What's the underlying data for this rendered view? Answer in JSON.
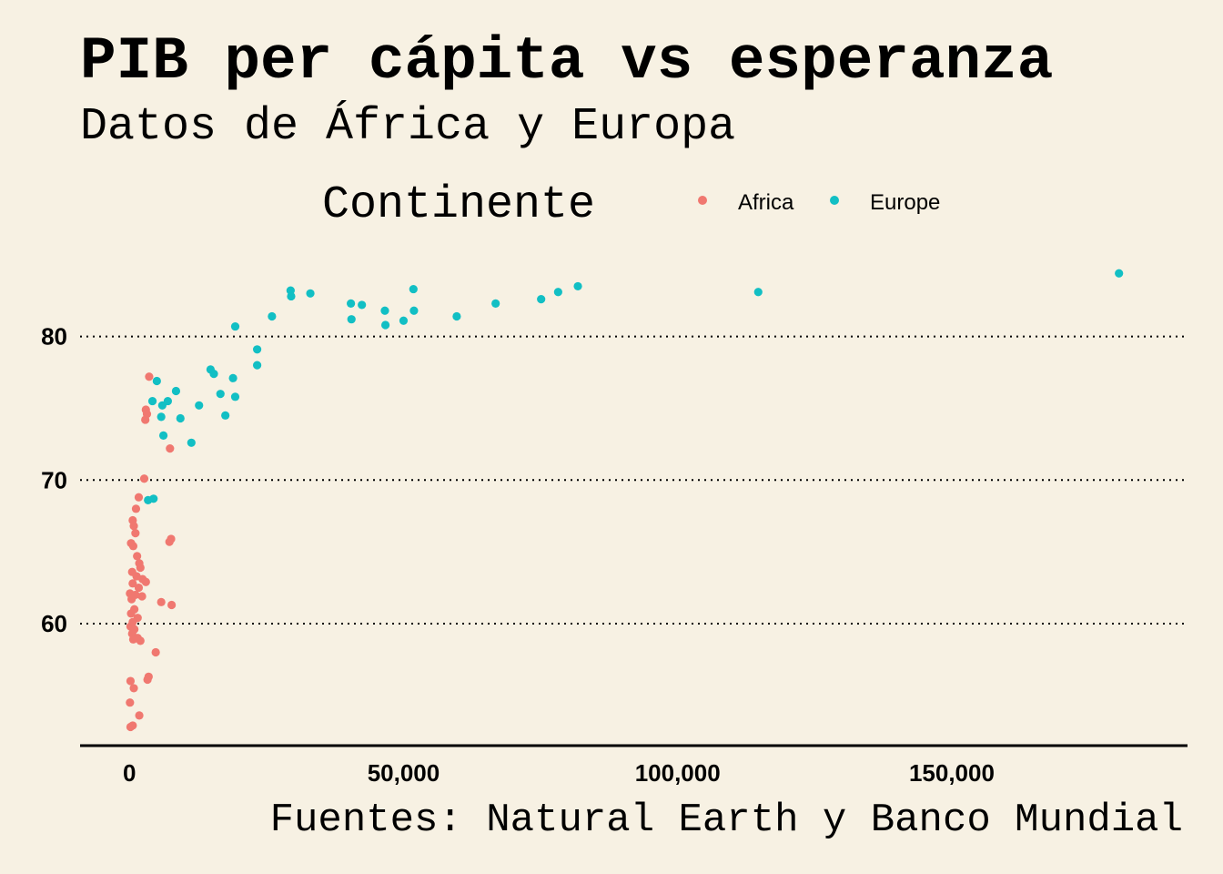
{
  "chart_data": {
    "type": "scatter",
    "title": "PIB per cápita vs esperanza",
    "subtitle": "Datos de África y Europa",
    "caption": "Fuentes: Natural Earth y Banco Mundial",
    "xlabel": "",
    "ylabel": "",
    "xlim": [
      -9000,
      193000
    ],
    "ylim": [
      51.5,
      86
    ],
    "x_ticks": [
      0,
      50000,
      100000,
      150000
    ],
    "x_tick_labels": [
      "0",
      "50,000",
      "100,000",
      "150,000"
    ],
    "y_ticks": [
      60,
      70,
      80
    ],
    "y_tick_labels": [
      "60",
      "70",
      "80"
    ],
    "grid": "horizontal dotted",
    "legend": {
      "title": "Continente",
      "position": "top",
      "items": [
        {
          "label": "Africa",
          "color": "#f07870"
        },
        {
          "label": "Europe",
          "color": "#12bfc4"
        }
      ]
    },
    "series": [
      {
        "name": "Africa",
        "color": "#f07870",
        "points": [
          [
            3600,
            77.2
          ],
          [
            3000,
            74.9
          ],
          [
            3200,
            74.6
          ],
          [
            2900,
            74.2
          ],
          [
            7400,
            72.2
          ],
          [
            2700,
            70.1
          ],
          [
            1700,
            68.8
          ],
          [
            1200,
            68.0
          ],
          [
            600,
            67.2
          ],
          [
            800,
            66.8
          ],
          [
            1100,
            66.3
          ],
          [
            7600,
            65.9
          ],
          [
            7300,
            65.7
          ],
          [
            300,
            65.6
          ],
          [
            700,
            65.4
          ],
          [
            1400,
            64.7
          ],
          [
            1800,
            64.2
          ],
          [
            2000,
            63.9
          ],
          [
            500,
            63.6
          ],
          [
            1300,
            63.3
          ],
          [
            2400,
            63.1
          ],
          [
            3000,
            62.9
          ],
          [
            600,
            62.8
          ],
          [
            1700,
            62.5
          ],
          [
            100,
            62.1
          ],
          [
            1100,
            62.0
          ],
          [
            2300,
            61.9
          ],
          [
            400,
            61.7
          ],
          [
            5800,
            61.5
          ],
          [
            7700,
            61.3
          ],
          [
            900,
            61.0
          ],
          [
            300,
            60.7
          ],
          [
            1500,
            60.4
          ],
          [
            600,
            60.1
          ],
          [
            200,
            59.8
          ],
          [
            900,
            59.6
          ],
          [
            500,
            59.3
          ],
          [
            1500,
            59.0
          ],
          [
            700,
            58.9
          ],
          [
            2000,
            58.8
          ],
          [
            4800,
            58.0
          ],
          [
            3500,
            56.3
          ],
          [
            3300,
            56.1
          ],
          [
            200,
            56.0
          ],
          [
            800,
            55.5
          ],
          [
            100,
            54.5
          ],
          [
            1800,
            53.6
          ],
          [
            600,
            52.9
          ],
          [
            200,
            52.8
          ]
        ]
      },
      {
        "name": "Europe",
        "color": "#12bfc4",
        "points": [
          [
            180500,
            84.4
          ],
          [
            81800,
            83.5
          ],
          [
            51800,
            83.3
          ],
          [
            114700,
            83.1
          ],
          [
            78200,
            83.1
          ],
          [
            29400,
            83.2
          ],
          [
            33000,
            83.0
          ],
          [
            29500,
            82.8
          ],
          [
            75100,
            82.6
          ],
          [
            66800,
            82.3
          ],
          [
            40400,
            82.3
          ],
          [
            42400,
            82.2
          ],
          [
            46600,
            81.8
          ],
          [
            51900,
            81.8
          ],
          [
            26000,
            81.4
          ],
          [
            59700,
            81.4
          ],
          [
            40500,
            81.2
          ],
          [
            50000,
            81.1
          ],
          [
            46700,
            80.8
          ],
          [
            19300,
            80.7
          ],
          [
            23300,
            79.1
          ],
          [
            23300,
            78.0
          ],
          [
            14800,
            77.7
          ],
          [
            15400,
            77.4
          ],
          [
            18900,
            77.1
          ],
          [
            5000,
            76.9
          ],
          [
            8500,
            76.2
          ],
          [
            16600,
            76.0
          ],
          [
            19300,
            75.8
          ],
          [
            4200,
            75.5
          ],
          [
            7000,
            75.5
          ],
          [
            6000,
            75.2
          ],
          [
            12700,
            75.2
          ],
          [
            5800,
            74.4
          ],
          [
            9300,
            74.3
          ],
          [
            17500,
            74.5
          ],
          [
            6200,
            73.1
          ],
          [
            11300,
            72.6
          ],
          [
            4400,
            68.7
          ],
          [
            3400,
            68.6
          ]
        ]
      }
    ]
  }
}
